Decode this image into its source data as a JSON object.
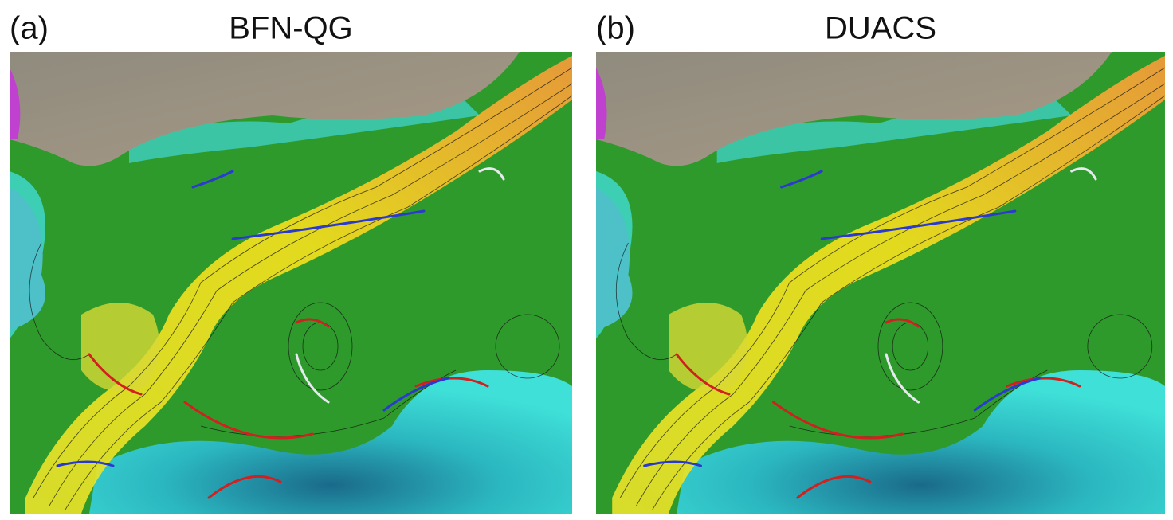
{
  "panels": [
    {
      "label": "(a)",
      "title": "BFN-QG"
    },
    {
      "label": "(b)",
      "title": "DUACS"
    }
  ]
}
